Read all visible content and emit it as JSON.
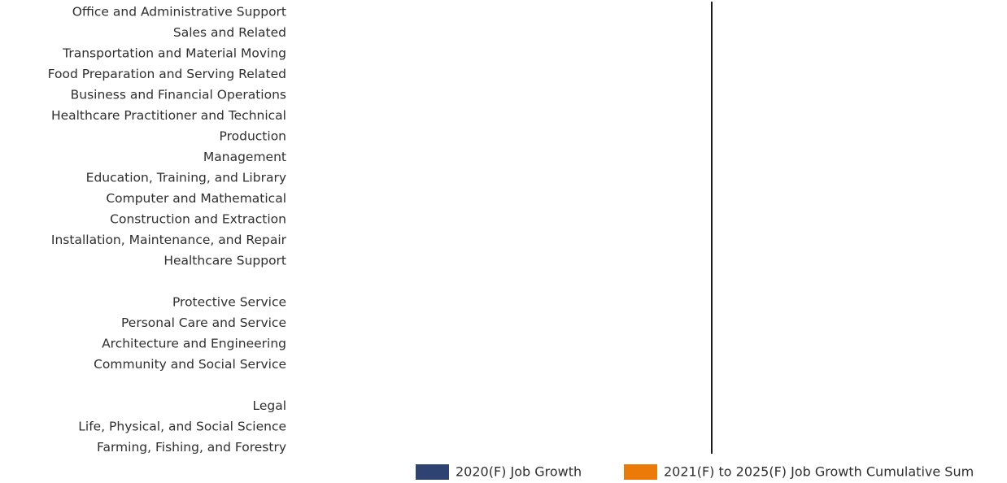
{
  "chart_data": {
    "type": "bar",
    "orientation": "horizontal",
    "categories": [
      "Office and Administrative Support",
      "Sales and Related",
      "Transportation and Material Moving",
      "Food Preparation and Serving Related",
      "Business and Financial Operations",
      "Healthcare Practitioner and Technical",
      "Production",
      "Management",
      "Education, Training, and Library",
      "Computer and Mathematical",
      "Construction and Extraction",
      "Installation, Maintenance, and Repair",
      "Healthcare Support",
      "",
      "Protective Service",
      "Personal Care and Service",
      "Architecture and Engineering",
      "Community and Social Service",
      "",
      "Legal",
      "Life, Physical, and Social Science",
      "Farming, Fishing, and Forestry"
    ],
    "series": [
      {
        "name": "2020(F) Job Growth",
        "color": "#2e4372",
        "values": [
          0,
          0,
          0,
          0,
          0,
          0,
          0,
          0,
          0,
          0,
          0,
          0,
          0,
          0,
          0,
          0,
          0,
          0,
          0,
          0,
          0,
          0
        ]
      },
      {
        "name": "2021(F) to 2025(F) Job Growth Cumulative Sum",
        "color": "#ec7a08",
        "values": [
          0,
          0,
          0,
          0,
          0,
          0,
          0,
          0,
          0,
          0,
          0,
          0,
          0,
          0,
          0,
          0,
          0,
          0,
          0,
          0,
          0,
          0
        ]
      }
    ],
    "title": "",
    "xlabel": "",
    "ylabel": "",
    "legend_position": "bottom-right",
    "grid": false,
    "axis_color": "#1a1a1a"
  }
}
